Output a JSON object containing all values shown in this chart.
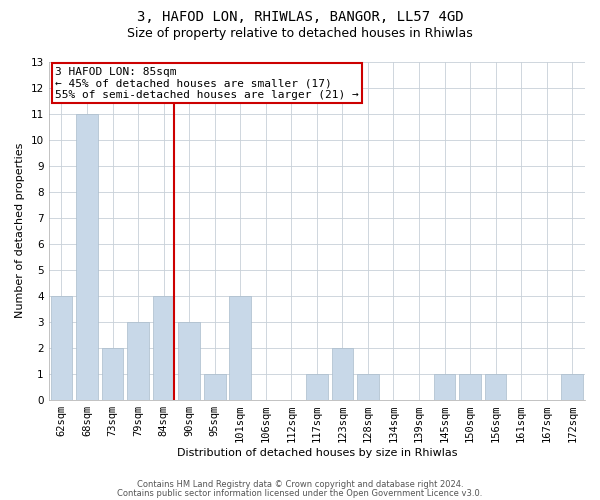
{
  "title": "3, HAFOD LON, RHIWLAS, BANGOR, LL57 4GD",
  "subtitle": "Size of property relative to detached houses in Rhiwlas",
  "xlabel": "Distribution of detached houses by size in Rhiwlas",
  "ylabel": "Number of detached properties",
  "categories": [
    "62sqm",
    "68sqm",
    "73sqm",
    "79sqm",
    "84sqm",
    "90sqm",
    "95sqm",
    "101sqm",
    "106sqm",
    "112sqm",
    "117sqm",
    "123sqm",
    "128sqm",
    "134sqm",
    "139sqm",
    "145sqm",
    "150sqm",
    "156sqm",
    "161sqm",
    "167sqm",
    "172sqm"
  ],
  "values": [
    4,
    11,
    2,
    3,
    4,
    3,
    1,
    4,
    0,
    0,
    1,
    2,
    1,
    0,
    0,
    1,
    1,
    1,
    0,
    0,
    1
  ],
  "bar_color": "#c8d8e8",
  "bar_edge_color": "#aabccc",
  "vline_color": "#cc0000",
  "vline_x_index": 4,
  "annotation_box_text": "3 HAFOD LON: 85sqm\n← 45% of detached houses are smaller (17)\n55% of semi-detached houses are larger (21) →",
  "annotation_box_color": "#cc0000",
  "ylim": [
    0,
    13
  ],
  "yticks": [
    0,
    1,
    2,
    3,
    4,
    5,
    6,
    7,
    8,
    9,
    10,
    11,
    12,
    13
  ],
  "footer_line1": "Contains HM Land Registry data © Crown copyright and database right 2024.",
  "footer_line2": "Contains public sector information licensed under the Open Government Licence v3.0.",
  "grid_color": "#c8d0d8",
  "title_fontsize": 10,
  "subtitle_fontsize": 9,
  "axis_label_fontsize": 8,
  "tick_fontsize": 7.5,
  "annotation_fontsize": 8,
  "footer_fontsize": 6
}
